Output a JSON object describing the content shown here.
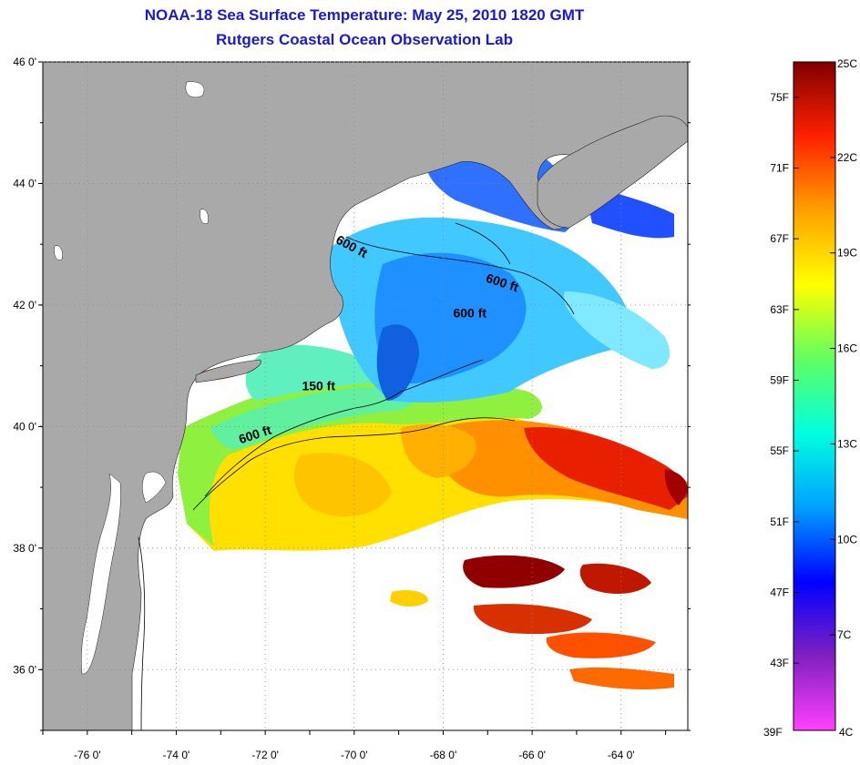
{
  "header": {
    "title": "NOAA-18 Sea Surface Temperature:  May 25, 2010 1820 GMT",
    "subtitle": "Rutgers Coastal Ocean Observation Lab"
  },
  "map": {
    "latitudes": [
      46,
      44,
      42,
      40,
      38,
      36
    ],
    "longitudes": [
      -76,
      -74,
      -72,
      -70,
      -68,
      -66,
      -64
    ],
    "lat_labels": [
      "46 0'",
      "44 0'",
      "42 0'",
      "40 0'",
      "38 0'",
      "36 0'"
    ],
    "lon_labels": [
      "-76 0'",
      "-74 0'",
      "-72 0'",
      "-70 0'",
      "-68 0'",
      "-66 0'",
      "-64 0'"
    ],
    "lat_range": [
      35,
      46
    ],
    "lon_range": [
      -77,
      -62.5
    ],
    "contours": [
      {
        "label": "600 ft",
        "lon": -70.1,
        "lat": 42.9,
        "angle": 28
      },
      {
        "label": "600 ft",
        "lon": -66.7,
        "lat": 42.3,
        "angle": 18
      },
      {
        "label": "600 ft",
        "lon": -67.4,
        "lat": 41.8,
        "angle": 0
      },
      {
        "label": "150 ft",
        "lon": -70.8,
        "lat": 40.6,
        "angle": 0
      },
      {
        "label": "600 ft",
        "lon": -72.2,
        "lat": 39.8,
        "angle": -18
      }
    ],
    "colors": {
      "land": "#a9a9a9",
      "cloud": "#ffffff",
      "frame": "#000000"
    }
  },
  "colorbar": {
    "top_label": "25C",
    "bottom_labels": {
      "f": "39F",
      "c": "4C"
    },
    "f_labels": [
      "75F",
      "71F",
      "67F",
      "63F",
      "59F",
      "55F",
      "51F",
      "47F",
      "43F"
    ],
    "c_labels": [
      "22C",
      "19C",
      "16C",
      "13C",
      "10C",
      "7C"
    ],
    "f_values": [
      75,
      71,
      67,
      63,
      59,
      55,
      51,
      47,
      43
    ],
    "c_values": [
      22,
      19,
      16,
      13,
      10,
      7
    ],
    "range_c": [
      4,
      25
    ],
    "stops": [
      "#ff40ff",
      "#8020c0",
      "#0000ff",
      "#00a0ff",
      "#00ffe0",
      "#60ff60",
      "#ffff00",
      "#ffa000",
      "#ff2000",
      "#800000"
    ]
  }
}
